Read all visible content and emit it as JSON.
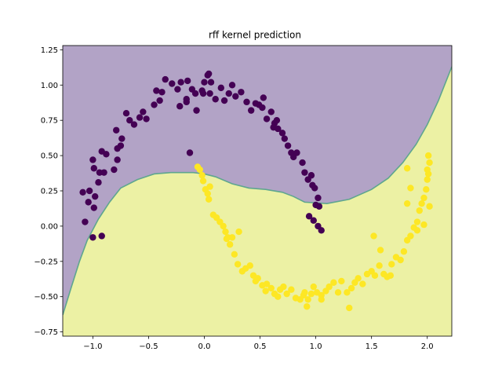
{
  "chart_data": {
    "type": "scatter",
    "title": "rff kernel prediction",
    "xlim": [
      -1.27,
      2.22
    ],
    "ylim": [
      -0.78,
      1.28
    ],
    "xticks": [
      -1.0,
      -0.5,
      0.0,
      0.5,
      1.0,
      1.5,
      2.0
    ],
    "xtick_labels": [
      "−1.0",
      "−0.5",
      "0.0",
      "0.5",
      "1.0",
      "1.5",
      "2.0"
    ],
    "yticks": [
      -0.75,
      -0.5,
      -0.25,
      0.0,
      0.25,
      0.5,
      0.75,
      1.0,
      1.25
    ],
    "ytick_labels": [
      "−0.75",
      "−0.50",
      "−0.25",
      "0.00",
      "0.25",
      "0.50",
      "0.75",
      "1.00",
      "1.25"
    ],
    "regions": {
      "class0_color": "#b2a3c6",
      "class1_color": "#ecf1a4",
      "boundary_color": "#5fa68f",
      "boundary": [
        [
          -1.27,
          -0.63
        ],
        [
          -1.2,
          -0.45
        ],
        [
          -1.12,
          -0.25
        ],
        [
          -1.05,
          -0.1
        ],
        [
          -0.95,
          0.05
        ],
        [
          -0.85,
          0.17
        ],
        [
          -0.75,
          0.27
        ],
        [
          -0.6,
          0.33
        ],
        [
          -0.45,
          0.37
        ],
        [
          -0.3,
          0.38
        ],
        [
          -0.1,
          0.38
        ],
        [
          0.0,
          0.37
        ],
        [
          0.1,
          0.35
        ],
        [
          0.25,
          0.3
        ],
        [
          0.4,
          0.27
        ],
        [
          0.55,
          0.26
        ],
        [
          0.7,
          0.24
        ],
        [
          0.8,
          0.21
        ],
        [
          0.9,
          0.17
        ],
        [
          1.1,
          0.16
        ],
        [
          1.3,
          0.19
        ],
        [
          1.5,
          0.26
        ],
        [
          1.65,
          0.34
        ],
        [
          1.78,
          0.45
        ],
        [
          1.9,
          0.58
        ],
        [
          2.0,
          0.72
        ],
        [
          2.1,
          0.89
        ],
        [
          2.22,
          1.13
        ]
      ]
    },
    "series": [
      {
        "color": "#440154",
        "points": [
          [
            -1.07,
            0.03
          ],
          [
            -1.0,
            -0.08
          ],
          [
            -0.92,
            -0.07
          ],
          [
            -1.04,
            0.17
          ],
          [
            -0.99,
            0.13
          ],
          [
            -1.09,
            0.24
          ],
          [
            -1.03,
            0.25
          ],
          [
            -0.98,
            0.21
          ],
          [
            -0.95,
            0.31
          ],
          [
            -1.0,
            0.47
          ],
          [
            -0.99,
            0.41
          ],
          [
            -0.94,
            0.38
          ],
          [
            -0.9,
            0.38
          ],
          [
            -0.92,
            0.53
          ],
          [
            -0.88,
            0.51
          ],
          [
            -0.81,
            0.4
          ],
          [
            -0.78,
            0.47
          ],
          [
            -0.75,
            0.57
          ],
          [
            -0.74,
            0.62
          ],
          [
            -0.79,
            0.68
          ],
          [
            -0.78,
            0.55
          ],
          [
            -0.7,
            0.8
          ],
          [
            -0.67,
            0.75
          ],
          [
            -0.63,
            0.72
          ],
          [
            -0.58,
            0.77
          ],
          [
            -0.55,
            0.81
          ],
          [
            -0.52,
            0.76
          ],
          [
            -0.45,
            0.86
          ],
          [
            -0.4,
            0.89
          ],
          [
            -0.43,
            0.96
          ],
          [
            -0.38,
            0.95
          ],
          [
            -0.35,
            1.04
          ],
          [
            -0.29,
            1.01
          ],
          [
            -0.24,
            0.97
          ],
          [
            -0.21,
            1.02
          ],
          [
            -0.15,
            1.03
          ],
          [
            -0.11,
            0.97
          ],
          [
            -0.08,
            0.94
          ],
          [
            -0.16,
            0.9
          ],
          [
            -0.22,
            0.85
          ],
          [
            -0.16,
            0.88
          ],
          [
            -0.07,
            0.82
          ],
          [
            0.0,
            1.02
          ],
          [
            0.04,
            1.08
          ],
          [
            0.06,
            1.02
          ],
          [
            0.03,
            1.07
          ],
          [
            -0.02,
            0.96
          ],
          [
            -0.01,
            0.94
          ],
          [
            0.05,
            0.94
          ],
          [
            0.1,
            0.9
          ],
          [
            0.15,
            0.98
          ],
          [
            0.18,
            0.89
          ],
          [
            0.22,
            0.94
          ],
          [
            0.25,
            1.0
          ],
          [
            0.28,
            0.92
          ],
          [
            0.33,
            0.95
          ],
          [
            0.38,
            0.88
          ],
          [
            0.42,
            0.82
          ],
          [
            0.46,
            0.87
          ],
          [
            0.49,
            0.86
          ],
          [
            0.52,
            0.84
          ],
          [
            0.53,
            0.91
          ],
          [
            0.56,
            0.76
          ],
          [
            0.6,
            0.81
          ],
          [
            0.63,
            0.73
          ],
          [
            0.62,
            0.7
          ],
          [
            0.65,
            0.75
          ],
          [
            0.66,
            0.69
          ],
          [
            0.7,
            0.66
          ],
          [
            0.72,
            0.62
          ],
          [
            0.75,
            0.57
          ],
          [
            0.78,
            0.52
          ],
          [
            0.8,
            0.49
          ],
          [
            0.83,
            0.52
          ],
          [
            0.88,
            0.45
          ],
          [
            0.9,
            0.38
          ],
          [
            0.93,
            0.33
          ],
          [
            0.96,
            0.36
          ],
          [
            0.97,
            0.29
          ],
          [
            0.99,
            0.27
          ],
          [
            1.02,
            0.2
          ],
          [
            1.0,
            0.15
          ],
          [
            1.03,
            0.14
          ],
          [
            0.94,
            0.07
          ],
          [
            0.98,
            0.04
          ],
          [
            1.02,
            0.0
          ],
          [
            1.05,
            -0.03
          ],
          [
            -0.13,
            0.52
          ]
        ]
      },
      {
        "color": "#fde725",
        "points": [
          [
            -0.06,
            0.42
          ],
          [
            -0.04,
            0.4
          ],
          [
            -0.02,
            0.36
          ],
          [
            -0.01,
            0.32
          ],
          [
            0.01,
            0.26
          ],
          [
            0.03,
            0.23
          ],
          [
            0.05,
            0.28
          ],
          [
            0.04,
            0.19
          ],
          [
            0.08,
            0.08
          ],
          [
            0.11,
            0.06
          ],
          [
            0.14,
            0.03
          ],
          [
            0.17,
            0.0
          ],
          [
            0.19,
            -0.04
          ],
          [
            0.2,
            -0.09
          ],
          [
            0.23,
            -0.13
          ],
          [
            0.25,
            -0.08
          ],
          [
            0.27,
            -0.2
          ],
          [
            0.3,
            -0.27
          ],
          [
            0.34,
            -0.32
          ],
          [
            0.37,
            -0.3
          ],
          [
            0.41,
            -0.28
          ],
          [
            0.44,
            -0.35
          ],
          [
            0.48,
            -0.37
          ],
          [
            0.52,
            -0.42
          ],
          [
            0.55,
            -0.46
          ],
          [
            0.56,
            -0.41
          ],
          [
            0.6,
            -0.44
          ],
          [
            0.63,
            -0.48
          ],
          [
            0.66,
            -0.5
          ],
          [
            0.68,
            -0.45
          ],
          [
            0.71,
            -0.43
          ],
          [
            0.74,
            -0.48
          ],
          [
            0.78,
            -0.45
          ],
          [
            0.82,
            -0.51
          ],
          [
            0.86,
            -0.52
          ],
          [
            0.89,
            -0.49
          ],
          [
            0.93,
            -0.52
          ],
          [
            0.96,
            -0.48
          ],
          [
            1.01,
            -0.47
          ],
          [
            1.05,
            -0.49
          ],
          [
            1.09,
            -0.46
          ],
          [
            1.12,
            -0.43
          ],
          [
            1.16,
            -0.4
          ],
          [
            1.2,
            -0.47
          ],
          [
            1.23,
            -0.39
          ],
          [
            1.28,
            -0.47
          ],
          [
            1.32,
            -0.44
          ],
          [
            1.35,
            -0.4
          ],
          [
            1.38,
            -0.37
          ],
          [
            1.42,
            -0.41
          ],
          [
            1.46,
            -0.34
          ],
          [
            1.5,
            -0.32
          ],
          [
            1.53,
            -0.35
          ],
          [
            1.57,
            -0.28
          ],
          [
            1.61,
            -0.34
          ],
          [
            1.64,
            -0.36
          ],
          [
            1.68,
            -0.27
          ],
          [
            1.72,
            -0.22
          ],
          [
            1.76,
            -0.24
          ],
          [
            1.79,
            -0.18
          ],
          [
            1.82,
            -0.1
          ],
          [
            1.85,
            -0.07
          ],
          [
            1.88,
            -0.01
          ],
          [
            1.91,
            0.03
          ],
          [
            1.93,
            0.11
          ],
          [
            1.95,
            0.16
          ],
          [
            1.97,
            0.2
          ],
          [
            1.99,
            0.26
          ],
          [
            2.0,
            0.33
          ],
          [
            2.01,
            0.37
          ],
          [
            2.0,
            0.4
          ],
          [
            2.02,
            0.45
          ],
          [
            2.01,
            0.5
          ],
          [
            2.02,
            0.14
          ],
          [
            1.97,
            0.01
          ],
          [
            1.91,
            -0.03
          ],
          [
            1.82,
            0.16
          ],
          [
            1.67,
            -0.35
          ],
          [
            1.58,
            -0.17
          ],
          [
            1.52,
            -0.07
          ],
          [
            0.92,
            -0.57
          ],
          [
            1.3,
            -0.58
          ],
          [
            0.46,
            -0.39
          ],
          [
            0.31,
            -0.04
          ],
          [
            0.21,
            -0.08
          ],
          [
            1.82,
            0.41
          ],
          [
            1.85,
            0.27
          ],
          [
            0.9,
            -0.47
          ],
          [
            1.05,
            -0.52
          ],
          [
            0.98,
            -0.43
          ]
        ]
      }
    ]
  }
}
